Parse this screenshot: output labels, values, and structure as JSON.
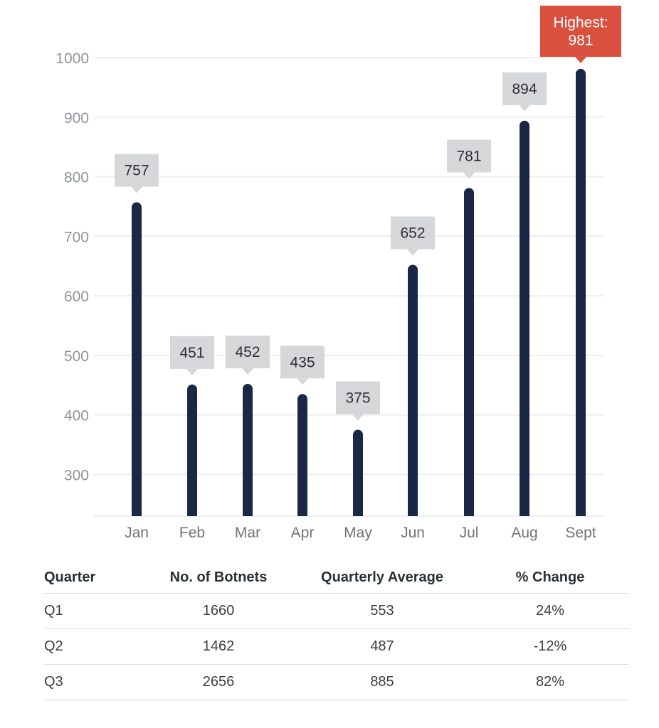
{
  "chart_data": {
    "type": "bar",
    "categories": [
      "Jan",
      "Feb",
      "Mar",
      "Apr",
      "May",
      "Jun",
      "Jul",
      "Aug",
      "Sept"
    ],
    "values": [
      757,
      451,
      452,
      435,
      375,
      652,
      781,
      894,
      981
    ],
    "data_labels": [
      "757",
      "451",
      "452",
      "435",
      "375",
      "652",
      "781",
      "894",
      "Highest:\n981"
    ],
    "yticks": [
      300,
      400,
      500,
      600,
      700,
      800,
      900,
      1000
    ],
    "ylim": [
      230,
      1000
    ],
    "grid": true,
    "colors": {
      "bar": "#1b2845",
      "highlight": "#d9503f",
      "label_box": "#d6d7d9",
      "grid": "#eceef1",
      "axis_text": "#8f939b",
      "category_text": "#6f747c",
      "category_bold": "#2b2f36"
    },
    "highlight_index": 8,
    "emphasized_category_index": 3
  },
  "table": {
    "headers": [
      "Quarter",
      "No. of Botnets",
      "Quarterly Average",
      "% Change"
    ],
    "rows": [
      [
        "Q1",
        "1660",
        "553",
        "24%"
      ],
      [
        "Q2",
        "1462",
        "487",
        "-12%"
      ],
      [
        "Q3",
        "2656",
        "885",
        "82%"
      ]
    ]
  }
}
